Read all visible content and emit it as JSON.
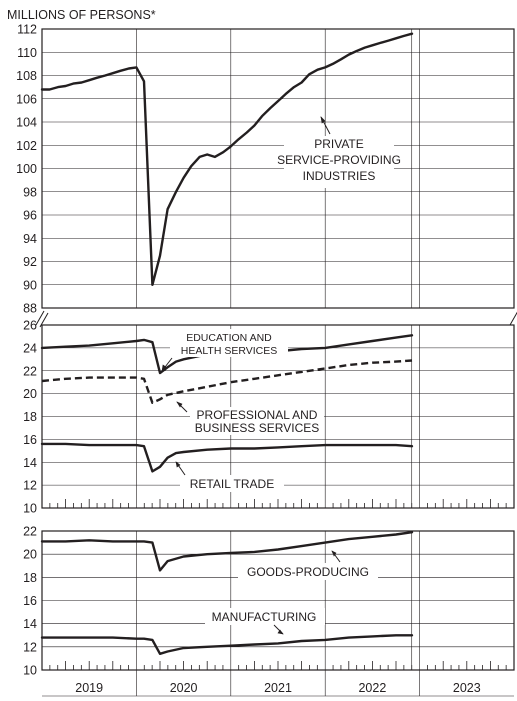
{
  "header": {
    "unit_label": "MILLIONS OF PERSONS*"
  },
  "x_axis": {
    "years": [
      "2019",
      "2020",
      "2021",
      "2022",
      "2023"
    ],
    "start": 2019.0,
    "end": 2024.0
  },
  "chart_data": [
    {
      "type": "line",
      "panel": "top",
      "ylim": [
        88,
        112
      ],
      "yticks": [
        "88",
        "90",
        "92",
        "94",
        "96",
        "98",
        "100",
        "102",
        "104",
        "106",
        "108",
        "110",
        "112"
      ],
      "series": [
        {
          "name": "PRIVATE SERVICE-PROVIDING INDUSTRIES",
          "style": "solid",
          "x": [
            2019.0,
            2019.08,
            2019.17,
            2019.25,
            2019.33,
            2019.42,
            2019.5,
            2019.58,
            2019.67,
            2019.75,
            2019.83,
            2019.92,
            2020.0,
            2020.08,
            2020.17,
            2020.25,
            2020.33,
            2020.42,
            2020.5,
            2020.58,
            2020.67,
            2020.75,
            2020.83,
            2020.92,
            2021.0,
            2021.08,
            2021.17,
            2021.25,
            2021.33,
            2021.42,
            2021.5,
            2021.58,
            2021.67,
            2021.75,
            2021.83,
            2021.92,
            2022.0,
            2022.08,
            2022.17,
            2022.25,
            2022.33,
            2022.42,
            2022.5,
            2022.58,
            2022.67,
            2022.75,
            2022.83,
            2022.92
          ],
          "y": [
            106.8,
            106.8,
            107.0,
            107.1,
            107.3,
            107.4,
            107.6,
            107.8,
            108.0,
            108.2,
            108.4,
            108.6,
            108.7,
            107.5,
            90.0,
            92.5,
            96.5,
            98.0,
            99.2,
            100.2,
            101.0,
            101.2,
            101.0,
            101.4,
            101.9,
            102.5,
            103.1,
            103.7,
            104.5,
            105.2,
            105.8,
            106.4,
            107.0,
            107.4,
            108.1,
            108.5,
            108.7,
            109.0,
            109.4,
            109.8,
            110.1,
            110.4,
            110.6,
            110.8,
            111.0,
            111.2,
            111.4,
            111.6
          ]
        }
      ],
      "annotations": [
        "PRIVATE",
        "SERVICE-PROVIDING",
        "INDUSTRIES"
      ]
    },
    {
      "type": "line",
      "panel": "middle",
      "ylim": [
        10,
        26
      ],
      "yticks": [
        "10",
        "12",
        "14",
        "16",
        "18",
        "20",
        "22",
        "24",
        "26"
      ],
      "series": [
        {
          "name": "EDUCATION AND HEALTH SERVICES",
          "style": "solid",
          "x": [
            2019.0,
            2019.25,
            2019.5,
            2019.75,
            2020.0,
            2020.08,
            2020.17,
            2020.25,
            2020.33,
            2020.42,
            2020.5,
            2020.67,
            2020.83,
            2021.0,
            2021.25,
            2021.5,
            2021.75,
            2022.0,
            2022.25,
            2022.5,
            2022.75,
            2022.92
          ],
          "y": [
            24.0,
            24.1,
            24.2,
            24.4,
            24.6,
            24.7,
            24.5,
            21.8,
            22.3,
            22.8,
            23.0,
            23.3,
            23.4,
            23.5,
            23.6,
            23.7,
            23.9,
            24.0,
            24.3,
            24.6,
            24.9,
            25.1
          ]
        },
        {
          "name": "PROFESSIONAL AND BUSINESS SERVICES",
          "style": "dashed",
          "x": [
            2019.0,
            2019.25,
            2019.5,
            2019.75,
            2020.0,
            2020.08,
            2020.17,
            2020.25,
            2020.33,
            2020.5,
            2020.75,
            2021.0,
            2021.25,
            2021.5,
            2021.75,
            2022.0,
            2022.25,
            2022.5,
            2022.75,
            2022.92
          ],
          "y": [
            21.1,
            21.3,
            21.4,
            21.4,
            21.4,
            21.3,
            19.2,
            19.5,
            19.9,
            20.2,
            20.6,
            21.0,
            21.3,
            21.6,
            21.9,
            22.2,
            22.5,
            22.7,
            22.8,
            22.9
          ]
        },
        {
          "name": "RETAIL TRADE",
          "style": "solid",
          "x": [
            2019.0,
            2019.25,
            2019.5,
            2019.75,
            2020.0,
            2020.08,
            2020.17,
            2020.25,
            2020.33,
            2020.42,
            2020.5,
            2020.75,
            2021.0,
            2021.25,
            2021.5,
            2021.75,
            2022.0,
            2022.25,
            2022.5,
            2022.75,
            2022.92
          ],
          "y": [
            15.6,
            15.6,
            15.5,
            15.5,
            15.5,
            15.4,
            13.2,
            13.6,
            14.4,
            14.8,
            14.9,
            15.1,
            15.2,
            15.2,
            15.3,
            15.4,
            15.5,
            15.5,
            15.5,
            15.5,
            15.4
          ]
        }
      ],
      "annotations": [
        "EDUCATION AND",
        "HEALTH SERVICES",
        "PROFESSIONAL AND",
        "BUSINESS SERVICES",
        "RETAIL TRADE"
      ]
    },
    {
      "type": "line",
      "panel": "bottom",
      "ylim": [
        10,
        22
      ],
      "yticks": [
        "10",
        "12",
        "14",
        "16",
        "18",
        "20",
        "22"
      ],
      "series": [
        {
          "name": "GOODS-PRODUCING",
          "style": "solid",
          "x": [
            2019.0,
            2019.25,
            2019.5,
            2019.75,
            2020.0,
            2020.08,
            2020.17,
            2020.25,
            2020.33,
            2020.5,
            2020.75,
            2021.0,
            2021.25,
            2021.5,
            2021.75,
            2022.0,
            2022.25,
            2022.5,
            2022.75,
            2022.92
          ],
          "y": [
            21.1,
            21.1,
            21.2,
            21.1,
            21.1,
            21.1,
            21.0,
            18.6,
            19.4,
            19.8,
            20.0,
            20.1,
            20.2,
            20.4,
            20.7,
            21.0,
            21.3,
            21.5,
            21.7,
            21.9
          ]
        },
        {
          "name": "MANUFACTURING",
          "style": "solid",
          "x": [
            2019.0,
            2019.25,
            2019.5,
            2019.75,
            2020.0,
            2020.08,
            2020.17,
            2020.25,
            2020.33,
            2020.5,
            2020.75,
            2021.0,
            2021.25,
            2021.5,
            2021.75,
            2022.0,
            2022.25,
            2022.5,
            2022.75,
            2022.92
          ],
          "y": [
            12.8,
            12.8,
            12.8,
            12.8,
            12.7,
            12.7,
            12.6,
            11.4,
            11.6,
            11.9,
            12.0,
            12.1,
            12.2,
            12.3,
            12.5,
            12.6,
            12.8,
            12.9,
            13.0,
            13.0
          ]
        }
      ],
      "annotations": [
        "GOODS-PRODUCING",
        "MANUFACTURING"
      ]
    }
  ]
}
